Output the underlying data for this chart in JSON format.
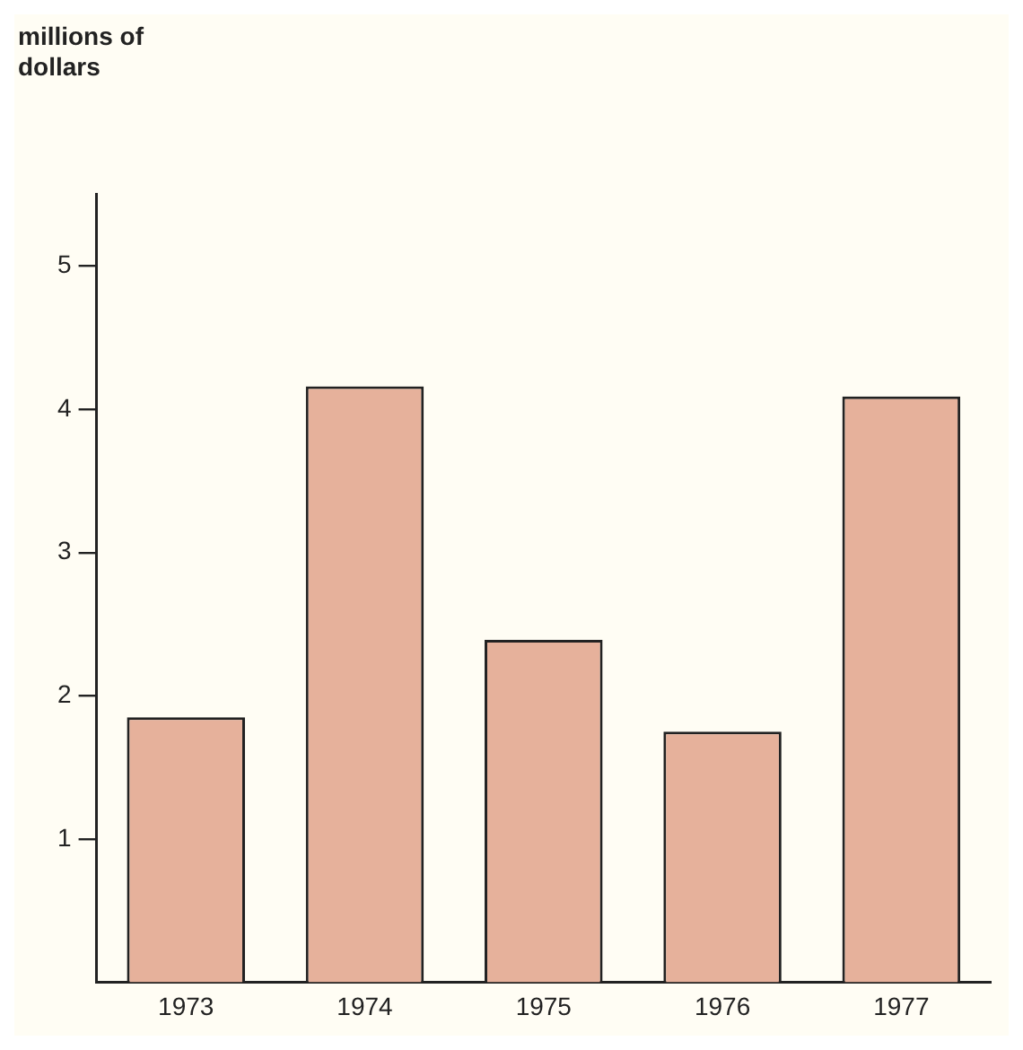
{
  "chart_data": {
    "type": "bar",
    "ylabel": "millions of dollars",
    "categories": [
      "1973",
      "1974",
      "1975",
      "1976",
      "1977"
    ],
    "values": [
      1.85,
      4.16,
      2.39,
      1.75,
      4.09
    ],
    "color": "#e6b19b",
    "ylim": [
      0,
      5.5
    ],
    "yticks": [
      1,
      2,
      3,
      4,
      5
    ],
    "grid": false,
    "legend": false
  }
}
